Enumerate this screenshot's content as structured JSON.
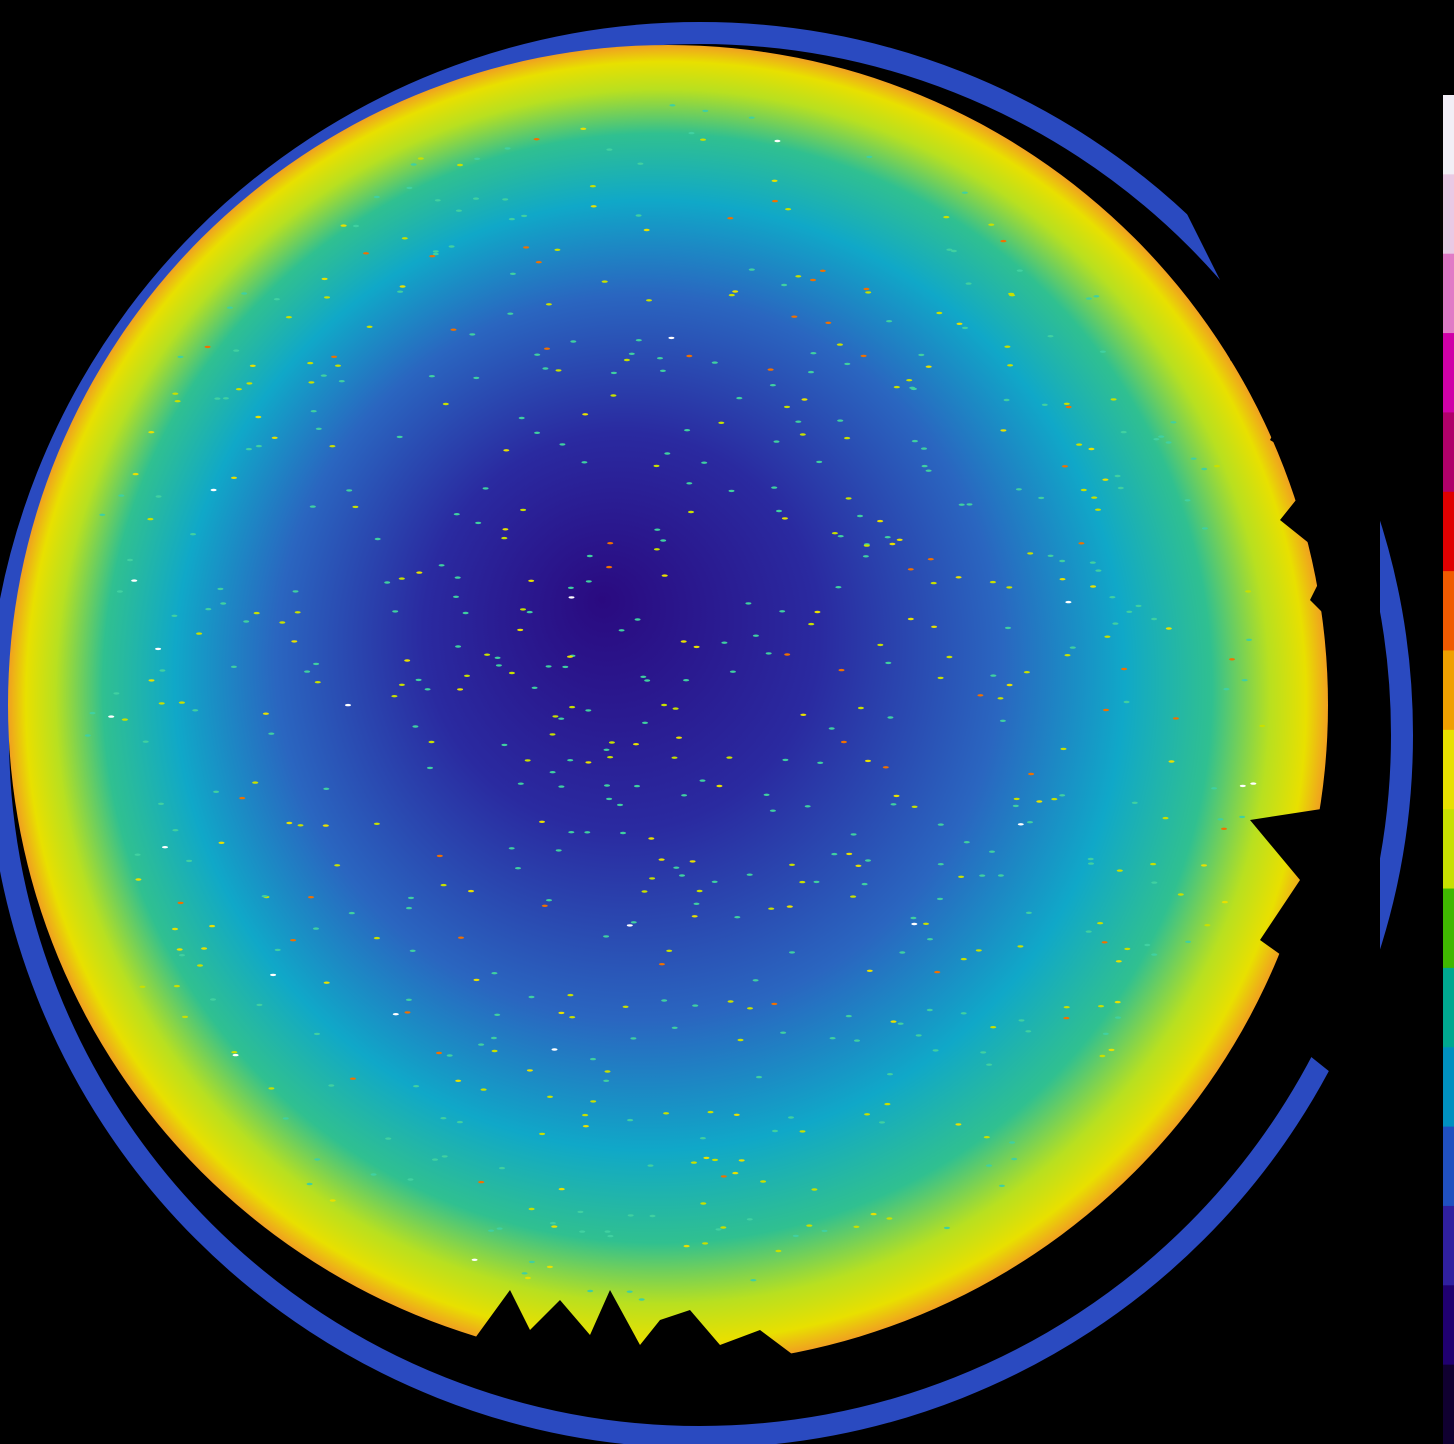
{
  "colorbar": [
    "#f2eef6",
    "#e9c9e4",
    "#e07bc6",
    "#d000a8",
    "#b0006a",
    "#e00000",
    "#f05a00",
    "#f0a000",
    "#e8e000",
    "#c8e000",
    "#40b800",
    "#00a890",
    "#0090c0",
    "#2050c0",
    "#3020a0",
    "#200070",
    "#100030"
  ]
}
